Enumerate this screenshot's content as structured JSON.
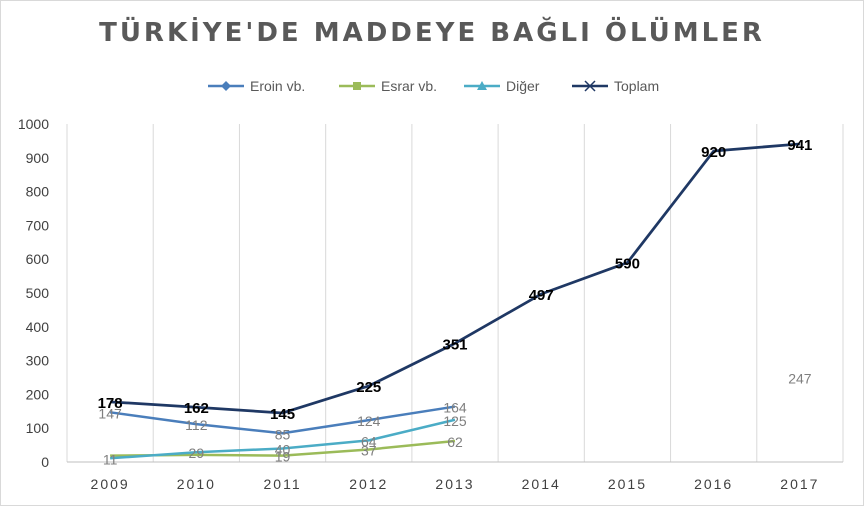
{
  "chart_data": {
    "type": "line",
    "title": "TÜRKİYE'DE MADDEYE BAĞLI ÖLÜMLER",
    "categories": [
      "2009",
      "2010",
      "2011",
      "2012",
      "2013",
      "2014",
      "2015",
      "2016",
      "2017"
    ],
    "ylim": [
      0,
      1000
    ],
    "yticks": [
      "0",
      "100",
      "200",
      "300",
      "400",
      "500",
      "600",
      "700",
      "800",
      "900",
      "1000"
    ],
    "grid": "vertical",
    "legend": "top",
    "series": [
      {
        "name": "Eroin vb.",
        "color": "#4a7ebb",
        "marker": "diamond",
        "values": [
          147,
          112,
          85,
          124,
          164,
          null,
          null,
          null,
          null
        ],
        "labels": [
          "147",
          "112",
          "85",
          "124",
          "164",
          "",
          "",
          "",
          ""
        ]
      },
      {
        "name": "Esrar vb.",
        "color": "#9bbb59",
        "marker": "square",
        "values": [
          19,
          21,
          19,
          37,
          62,
          null,
          null,
          null,
          null
        ],
        "labels": [
          "",
          "",
          "19",
          "37",
          "62",
          "",
          "",
          "",
          ""
        ]
      },
      {
        "name": "Diğer",
        "color": "#4bacc6",
        "marker": "triangle",
        "values": [
          11,
          29,
          40,
          64,
          125,
          null,
          null,
          null,
          null
        ],
        "labels": [
          "11",
          "29",
          "40",
          "64",
          "125",
          "",
          "",
          "",
          ""
        ]
      },
      {
        "name": "Toplam",
        "color": "#1f3864",
        "marker": "x",
        "values": [
          178,
          162,
          145,
          225,
          351,
          497,
          590,
          920,
          941
        ],
        "labels": [
          "178",
          "162",
          "145",
          "225",
          "351",
          "497",
          "590",
          "920",
          "941"
        ]
      }
    ],
    "annotations": [
      {
        "text": "247",
        "category": "2017",
        "value": 247
      }
    ]
  }
}
